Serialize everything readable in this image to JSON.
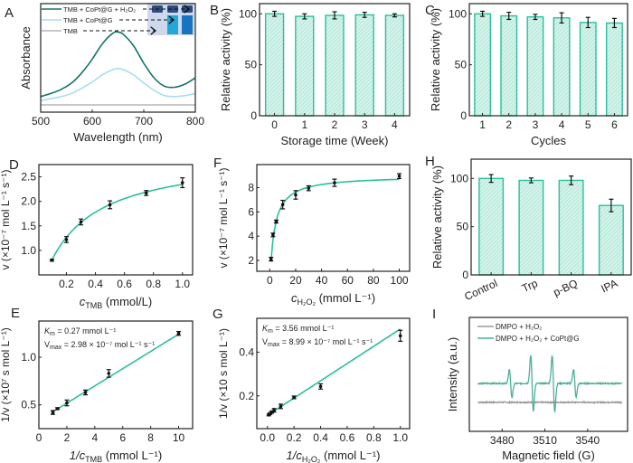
{
  "colors": {
    "teal": "#2bbf9e",
    "teal_fill": "#d6f3ea",
    "dark_teal": "#137565",
    "light_blue": "#a9dcf3",
    "gray": "#b5b5b5",
    "epr_teal": "#4fae98",
    "epr_gray": "#9a9a9a",
    "axis": "#222222"
  },
  "chart_data": [
    {
      "id": "A",
      "panel_label": "A",
      "type": "line",
      "title": "",
      "xlabel": "Wavelength (nm)",
      "ylabel": "Absorbance",
      "xlim": [
        500,
        800
      ],
      "ylim": [
        0,
        1
      ],
      "xticks": [
        500,
        600,
        700,
        800
      ],
      "yticks": [],
      "legend_position": "top-left",
      "series": [
        {
          "name": "TMB + CoPt@G + H₂O₂",
          "color_key": "dark_teal",
          "x": [
            500,
            520,
            540,
            560,
            580,
            600,
            620,
            640,
            650,
            660,
            680,
            700,
            720,
            740,
            760,
            780,
            800
          ],
          "y": [
            0.08,
            0.11,
            0.15,
            0.21,
            0.31,
            0.44,
            0.59,
            0.69,
            0.7,
            0.68,
            0.57,
            0.4,
            0.26,
            0.18,
            0.17,
            0.2,
            0.26
          ]
        },
        {
          "name": "TMB + CoPt@G",
          "color_key": "light_blue",
          "x": [
            500,
            520,
            540,
            560,
            580,
            600,
            620,
            640,
            650,
            660,
            680,
            700,
            720,
            740,
            760,
            780,
            800
          ],
          "y": [
            0.04,
            0.06,
            0.08,
            0.11,
            0.16,
            0.22,
            0.29,
            0.34,
            0.35,
            0.34,
            0.29,
            0.21,
            0.14,
            0.09,
            0.08,
            0.09,
            0.11
          ]
        },
        {
          "name": "TMB",
          "color_key": "gray",
          "x": [
            500,
            800
          ],
          "y": [
            0.0,
            0.0
          ]
        }
      ],
      "inset": {
        "description": "photo of three vials",
        "vial_colors": [
          "#cfd8ea",
          "#22a7d6",
          "#1874bf"
        ],
        "cap_color": "#2e4a7e"
      }
    },
    {
      "id": "B",
      "panel_label": "B",
      "type": "bar",
      "xlabel": "Storage time (Week)",
      "ylabel": "Relative activity (%)",
      "ylim": [
        0,
        110
      ],
      "yticks": [
        0,
        50,
        100
      ],
      "categories": [
        "0",
        "1",
        "2",
        "3",
        "4"
      ],
      "values": [
        100,
        97.5,
        98.5,
        99,
        98.5
      ],
      "errors": [
        2.5,
        2.5,
        3.5,
        2.5,
        1.5
      ]
    },
    {
      "id": "C",
      "panel_label": "C",
      "type": "bar",
      "xlabel": "Cycles",
      "ylabel": "Relative activity (%)",
      "ylim": [
        0,
        110
      ],
      "yticks": [
        0,
        50,
        100
      ],
      "categories": [
        "1",
        "2",
        "3",
        "4",
        "5",
        "6"
      ],
      "values": [
        100,
        98,
        97,
        96,
        91.5,
        91
      ],
      "errors": [
        2.5,
        3.5,
        2.5,
        5,
        5,
        4.5
      ]
    },
    {
      "id": "D",
      "panel_label": "D",
      "type": "scatter",
      "xlabel_main": "c",
      "xlabel_sub": "TMB",
      "xlabel_tail": " (mmol/L)",
      "ylabel": "v (×10⁻⁷ mol L⁻¹ s⁻¹)",
      "xlim": [
        0.01,
        1.07
      ],
      "ylim": [
        0.5,
        2.75
      ],
      "xticks": [
        0.2,
        0.4,
        0.6,
        0.8,
        1.0
      ],
      "yticks": [
        1.0,
        1.5,
        2.0,
        2.5
      ],
      "points": {
        "x": [
          0.1,
          0.2,
          0.3,
          0.5,
          0.75,
          1.0
        ],
        "y": [
          0.8,
          1.22,
          1.58,
          1.93,
          2.17,
          2.38
        ],
        "err": [
          0.02,
          0.06,
          0.06,
          0.08,
          0.05,
          0.1
        ]
      },
      "fit": {
        "model": "michaelis-menten",
        "vmax": 2.98,
        "km": 0.27,
        "x_range": [
          0.1,
          1.0
        ]
      }
    },
    {
      "id": "F",
      "panel_label": "F",
      "type": "scatter",
      "xlabel_main": "c",
      "xlabel_sub": "H₂O₂",
      "xlabel_tail": " (mmol L⁻¹)",
      "ylabel": "v (×10⁻⁷ mol L⁻¹ s⁻¹)",
      "xlim": [
        -10,
        108
      ],
      "ylim": [
        1.1,
        9.9
      ],
      "xticks": [
        0,
        20,
        40,
        60,
        80,
        100
      ],
      "yticks": [
        2,
        4,
        6,
        8
      ],
      "points": {
        "x": [
          1,
          2.5,
          5,
          10,
          20,
          30,
          50,
          100
        ],
        "y": [
          2.1,
          4.1,
          5.2,
          6.6,
          7.4,
          7.95,
          8.4,
          8.95
        ],
        "err": [
          0.15,
          0.15,
          0.12,
          0.35,
          0.35,
          0.2,
          0.3,
          0.2
        ]
      },
      "fit": {
        "model": "michaelis-menten",
        "vmax": 8.99,
        "km": 3.56,
        "x_range": [
          1,
          100
        ]
      }
    },
    {
      "id": "H",
      "panel_label": "H",
      "type": "bar",
      "xlabel": "",
      "ylabel": "Relative activity (%)",
      "ylim": [
        0,
        120
      ],
      "yticks": [
        0,
        50,
        100
      ],
      "categories": [
        "Control",
        "Trp",
        "p-BQ",
        "IPA"
      ],
      "values": [
        100,
        98,
        98,
        72
      ],
      "errors": [
        4,
        2.5,
        4.5,
        6.5
      ]
    },
    {
      "id": "E",
      "panel_label": "E",
      "type": "scatter",
      "xlabel_main": "1/c",
      "xlabel_sub": "TMB",
      "xlabel_tail": " (mmol L⁻¹)",
      "ylabel": "1/v (×10⁷ s mol L⁻¹)",
      "xlim": [
        0,
        11
      ],
      "ylim": [
        0.25,
        1.38
      ],
      "xticks": [
        0,
        2,
        4,
        6,
        8,
        10
      ],
      "yticks": [
        0.5,
        1.0
      ],
      "points": {
        "x": [
          1,
          1.33,
          2,
          3.33,
          5,
          10
        ],
        "y": [
          0.42,
          0.46,
          0.52,
          0.63,
          0.83,
          1.25
        ],
        "err": [
          0.02,
          0.01,
          0.03,
          0.025,
          0.04,
          0.02
        ]
      },
      "fit": {
        "model": "linear",
        "slope": 0.0906,
        "intercept": 0.336,
        "x_range": [
          1,
          10
        ]
      },
      "annotations": [
        {
          "main": "K",
          "sub": "m",
          "text": " = 0.27 mmol L⁻¹"
        },
        {
          "main": "V",
          "sub": "max",
          "text": " = 2.98 × 10⁻⁷ mol L⁻¹ s⁻¹"
        }
      ]
    },
    {
      "id": "G",
      "panel_label": "G",
      "type": "scatter",
      "xlabel_main": "1/c",
      "xlabel_sub": "H₂O₂",
      "xlabel_tail": " (mmol L⁻¹)",
      "ylabel": "1/v (×10 s mol L⁻¹)",
      "xlim": [
        -0.08,
        1.07
      ],
      "ylim": [
        0.05,
        0.555
      ],
      "xticks": [
        0.0,
        0.2,
        0.4,
        0.6,
        0.8,
        1.0
      ],
      "yticks": [
        0.2,
        0.4
      ],
      "points": {
        "x": [
          0.01,
          0.02,
          0.033,
          0.05,
          0.1,
          0.2,
          0.4,
          1.0
        ],
        "y": [
          0.113,
          0.119,
          0.126,
          0.134,
          0.152,
          0.193,
          0.243,
          0.475
        ],
        "err": [
          0.004,
          0.004,
          0.005,
          0.008,
          0.01,
          0.006,
          0.012,
          0.025
        ]
      },
      "fit": {
        "model": "linear",
        "slope": 0.395,
        "intercept": 0.111,
        "x_range": [
          0.01,
          1.0
        ]
      },
      "annotations": [
        {
          "main": "K",
          "sub": "m",
          "text": " = 3.56 mmol L⁻¹"
        },
        {
          "main": "V",
          "sub": "max",
          "text": " = 8.99 × 10⁻⁷ mol L⁻¹ s⁻¹"
        }
      ]
    },
    {
      "id": "I",
      "panel_label": "I",
      "type": "line",
      "xlabel": "Magnetic field (G)",
      "ylabel": "Intensity (a.u.)",
      "xlim": [
        3457,
        3568
      ],
      "ylim": [
        -1.3,
        1.3
      ],
      "xticks": [
        3480,
        3510,
        3540
      ],
      "yticks": [],
      "legend_position": "top-left",
      "series": [
        {
          "name": "DMPO + H₂O₂",
          "color_key": "epr_gray",
          "baseline": -0.95,
          "peaks": []
        },
        {
          "name": "DMPO + H₂O₂ + CoPt@G",
          "color_key": "epr_teal",
          "baseline": 0.0,
          "peaks": [
            {
              "center": 3486,
              "amp": 1
            },
            {
              "center": 3501,
              "amp": 2
            },
            {
              "center": 3516,
              "amp": 2
            },
            {
              "center": 3531,
              "amp": 1
            }
          ]
        }
      ]
    }
  ]
}
